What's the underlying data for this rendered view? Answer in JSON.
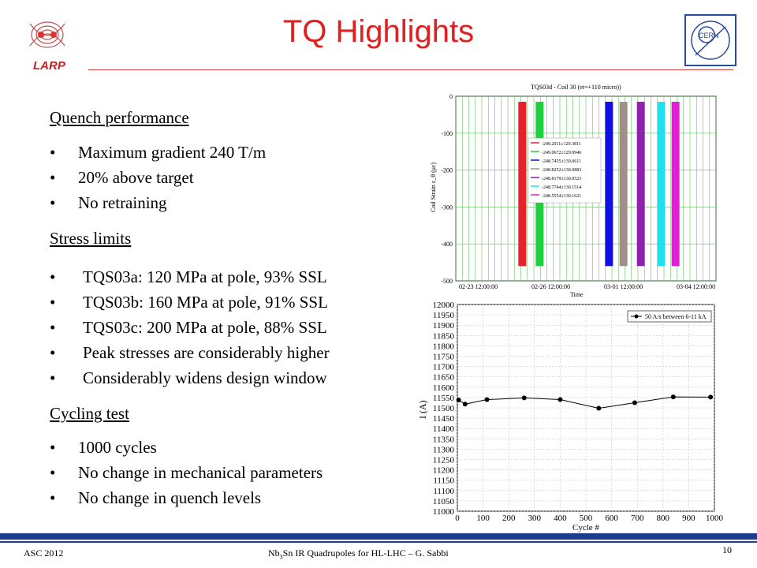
{
  "slide": {
    "title": "TQ Highlights",
    "logo_left_text": "LARP",
    "logo_right_text": "CERN"
  },
  "sections": [
    {
      "heading": "Quench performance",
      "bullets": [
        "Maximum gradient 240 T/m",
        "20% above target",
        "No retraining"
      ]
    },
    {
      "heading": "Stress limits",
      "bullets": [
        "TQS03a: 120 MPa at pole, 93% SSL",
        "TQS03b: 160 MPa at pole, 91% SSL",
        "TQS03c: 200 MPa at pole, 88% SSL",
        "Peak stresses are considerably higher",
        "Considerably widens design window"
      ]
    },
    {
      "heading": "Cycling test",
      "bullets": [
        "1000 cycles",
        "No change in mechanical parameters",
        "No change in quench levels"
      ]
    }
  ],
  "footer": {
    "left": "ASC 2012",
    "center_nb": "Nb",
    "center_sub": "3",
    "center_rest": "Sn IR Quadrupoles for HL-LHC – G. Sabbi",
    "page": "10"
  },
  "chart_data": [
    {
      "type": "scatter",
      "title": "TQS03d - Coil 30 (et=+110 micro))",
      "ylabel": "Coil Strain ε_θ (με)",
      "xlabel": "Time",
      "ylim": [
        -500,
        0
      ],
      "yticks": [
        "0",
        "-100",
        "-200",
        "-300",
        "-400",
        "-500"
      ],
      "xticks": [
        "02-23 12:00:00",
        "02-26 12:00:00",
        "03-01 12:00:00",
        "03-04 12:00:00"
      ],
      "grid": true,
      "legend_position": "top-left",
      "series": [
        {
          "name": "-249.2911±129.3811",
          "color": "#e8202a",
          "x": 2.3,
          "ymin": -460,
          "ymax": -15
        },
        {
          "name": "-249.0672±129.9946",
          "color": "#20d040",
          "x": 2.9,
          "ymin": -460,
          "ymax": -15
        },
        {
          "name": "-248.7455±130.0611",
          "color": "#1010e0",
          "x": 5.3,
          "ymin": -460,
          "ymax": -15
        },
        {
          "name": "-248.8252±130.0883",
          "color": "#a09088",
          "x": 5.8,
          "ymin": -460,
          "ymax": -15
        },
        {
          "name": "-248.8179±130.0523",
          "color": "#9020b0",
          "x": 6.4,
          "ymin": -460,
          "ymax": -15
        },
        {
          "name": "-248.7744±130.1514",
          "color": "#20e0f0",
          "x": 7.1,
          "ymin": -460,
          "ymax": -15
        },
        {
          "name": "-248.5554±130.1621",
          "color": "#e020d0",
          "x": 7.6,
          "ymin": -460,
          "ymax": -15
        }
      ]
    },
    {
      "type": "line",
      "xlabel": "Cycle #",
      "ylabel": "I (A)",
      "xlim": [
        0,
        1000
      ],
      "ylim": [
        11000,
        12000
      ],
      "xticks": [
        "0",
        "100",
        "200",
        "300",
        "400",
        "500",
        "600",
        "700",
        "800",
        "900",
        "1000"
      ],
      "yticks": [
        "12000",
        "11950",
        "11900",
        "11850",
        "11800",
        "11750",
        "11700",
        "11650",
        "11600",
        "11550",
        "11500",
        "11450",
        "11400",
        "11350",
        "11300",
        "11250",
        "11200",
        "11150",
        "11100",
        "11050",
        "11000"
      ],
      "grid": true,
      "legend_position": "top-right",
      "series": [
        {
          "name": "50 A/s between 6-11 kA",
          "x": [
            5,
            30,
            115,
            260,
            400,
            550,
            690,
            840,
            985
          ],
          "y": [
            11538,
            11518,
            11540,
            11548,
            11540,
            11498,
            11525,
            11553,
            11552
          ]
        }
      ]
    }
  ],
  "colors": {
    "title": "#e02020",
    "footer_bar": "#1f3c8c"
  }
}
